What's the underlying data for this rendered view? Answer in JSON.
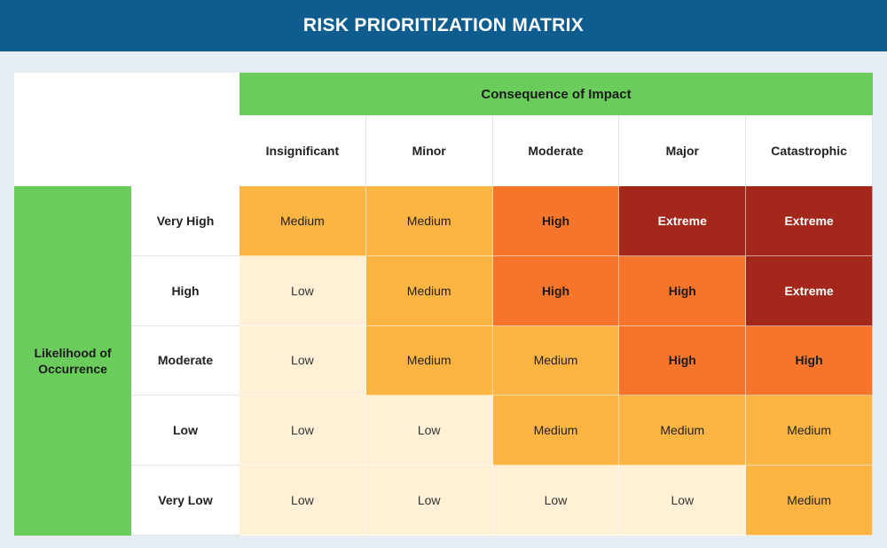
{
  "header": {
    "title": "RISK PRIORITIZATION MATRIX"
  },
  "matrix": {
    "column_axis_label": "Consequence of Impact",
    "row_axis_label": "Likelihood of Occurrence",
    "columns": [
      "Insignificant",
      "Minor",
      "Moderate",
      "Major",
      "Catastrophic"
    ],
    "rows": [
      {
        "label": "Very High",
        "cells": [
          "Medium",
          "Medium",
          "High",
          "Extreme",
          "Extreme"
        ]
      },
      {
        "label": "High",
        "cells": [
          "Low",
          "Medium",
          "High",
          "High",
          "Extreme"
        ]
      },
      {
        "label": "Moderate",
        "cells": [
          "Low",
          "Medium",
          "Medium",
          "High",
          "High"
        ]
      },
      {
        "label": "Low",
        "cells": [
          "Low",
          "Low",
          "Medium",
          "Medium",
          "Medium"
        ]
      },
      {
        "label": "Very Low",
        "cells": [
          "Low",
          "Low",
          "Low",
          "Low",
          "Medium"
        ]
      }
    ]
  },
  "colors": {
    "header_bg": "#0f5c8f",
    "axis_header_bg": "#6acd5b",
    "Low": "#fff0d6",
    "Medium": "#fcb542",
    "High": "#f5762a",
    "Extreme": "#a3271b"
  }
}
